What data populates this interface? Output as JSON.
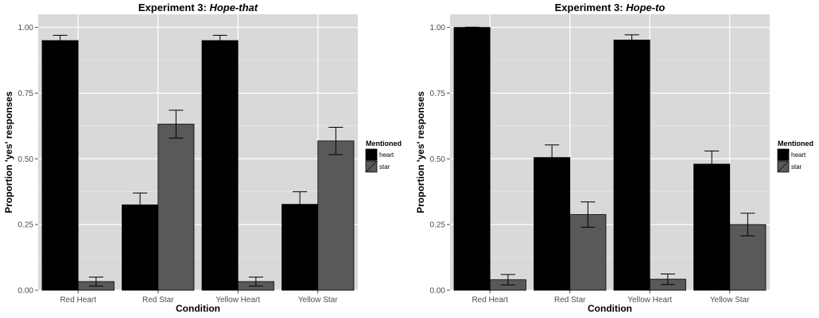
{
  "chart_data": [
    {
      "type": "bar",
      "title_prefix": "Experiment 3: ",
      "title_emph": "Hope-that",
      "xlabel": "Condition",
      "ylabel": "Proportion 'yes' responses",
      "categories": [
        "Red Heart",
        "Red Star",
        "Yellow Heart",
        "Yellow Star"
      ],
      "ylim": [
        0,
        1.05
      ],
      "yticks": [
        "0.00",
        "0.25",
        "0.50",
        "0.75",
        "1.00"
      ],
      "legend": {
        "title": "Mentioned",
        "position": "right"
      },
      "series": [
        {
          "name": "heart",
          "color": "#000000",
          "values": [
            0.95,
            0.325,
            0.95,
            0.327
          ],
          "err": [
            0.02,
            0.045,
            0.02,
            0.048
          ]
        },
        {
          "name": "star",
          "color": "#595959",
          "values": [
            0.033,
            0.632,
            0.033,
            0.568
          ],
          "err": [
            0.017,
            0.053,
            0.017,
            0.052
          ]
        }
      ]
    },
    {
      "type": "bar",
      "title_prefix": "Experiment 3: ",
      "title_emph": "Hope-to",
      "xlabel": "Condition",
      "ylabel": "Proportion 'yes' responses",
      "categories": [
        "Red Heart",
        "Red Star",
        "Yellow Heart",
        "Yellow Star"
      ],
      "ylim": [
        0,
        1.05
      ],
      "yticks": [
        "0.00",
        "0.25",
        "0.50",
        "0.75",
        "1.00"
      ],
      "legend": {
        "title": "Mentioned",
        "position": "right"
      },
      "series": [
        {
          "name": "heart",
          "color": "#000000",
          "values": [
            1.0,
            0.505,
            0.952,
            0.48
          ],
          "err": [
            0.001,
            0.048,
            0.02,
            0.05
          ]
        },
        {
          "name": "star",
          "color": "#595959",
          "values": [
            0.04,
            0.288,
            0.042,
            0.25
          ],
          "err": [
            0.02,
            0.048,
            0.02,
            0.043
          ]
        }
      ]
    }
  ]
}
